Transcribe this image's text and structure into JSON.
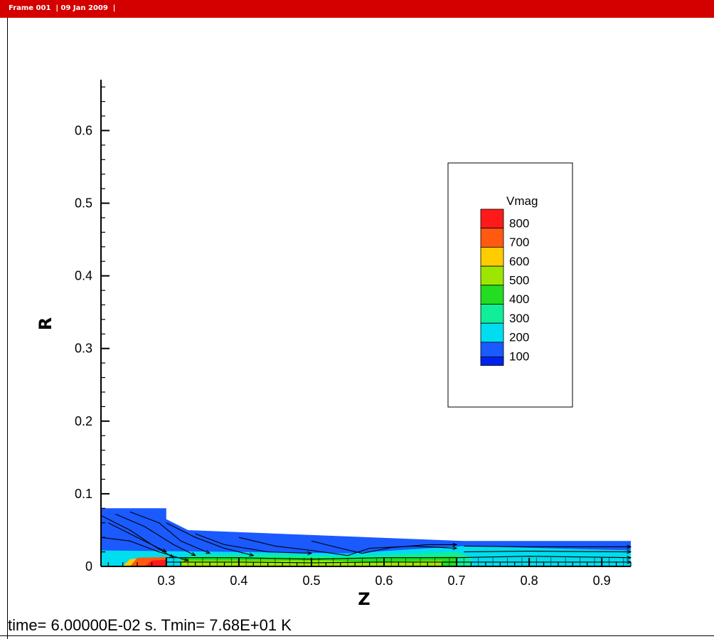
{
  "frame": {
    "header_text": "Frame 001  | 09 Jan 2009  |",
    "header_color": "#d40000"
  },
  "footer": {
    "text": "time= 6.00000E-02 s. Tmin= 7.68E+01 K"
  },
  "chart_data": {
    "type": "heatmap",
    "title": "",
    "xlabel": "Z",
    "ylabel": "R",
    "xlim": [
      0.21,
      0.94
    ],
    "ylim": [
      0,
      0.67
    ],
    "xticks": [
      0.3,
      0.4,
      0.5,
      0.6,
      0.7,
      0.8,
      0.9
    ],
    "xtick_labels": [
      "0.3",
      "0.4",
      "0.5",
      "0.6",
      "0.7",
      "0.8",
      "0.9"
    ],
    "yticks": [
      0,
      0.1,
      0.2,
      0.3,
      0.4,
      0.5,
      0.6
    ],
    "ytick_labels": [
      "0",
      "0.1",
      "0.2",
      "0.3",
      "0.4",
      "0.5",
      "0.6"
    ],
    "legend": {
      "title": "Vmag",
      "placement": "right",
      "levels": [
        {
          "label": "800",
          "color": "#ff1a1a"
        },
        {
          "label": "700",
          "color": "#ff5a10"
        },
        {
          "label": "600",
          "color": "#ffcc00"
        },
        {
          "label": "500",
          "color": "#9de600"
        },
        {
          "label": "400",
          "color": "#22dd22"
        },
        {
          "label": "300",
          "color": "#10ee99"
        },
        {
          "label": "200",
          "color": "#00ddee"
        },
        {
          "label": "100",
          "color": "#1a5aff"
        }
      ],
      "bottom_color": "#0022ee"
    },
    "domain_outline": [
      [
        0.21,
        0
      ],
      [
        0.21,
        0.08
      ],
      [
        0.3,
        0.08
      ],
      [
        0.3,
        0.065
      ],
      [
        0.33,
        0.05
      ],
      [
        0.71,
        0.035
      ],
      [
        0.94,
        0.035
      ],
      [
        0.94,
        0
      ],
      [
        0.21,
        0
      ]
    ],
    "regions": [
      {
        "value": 100,
        "polygon": [
          [
            0.21,
            0
          ],
          [
            0.21,
            0.08
          ],
          [
            0.3,
            0.08
          ],
          [
            0.3,
            0.065
          ],
          [
            0.33,
            0.05
          ],
          [
            0.71,
            0.035
          ],
          [
            0.94,
            0.035
          ],
          [
            0.94,
            0
          ]
        ]
      },
      {
        "value": 200,
        "polygon": [
          [
            0.21,
            0
          ],
          [
            0.21,
            0.022
          ],
          [
            0.4,
            0.02
          ],
          [
            0.55,
            0.018
          ],
          [
            0.71,
            0.028
          ],
          [
            0.94,
            0.022
          ],
          [
            0.94,
            0
          ]
        ]
      },
      {
        "value": 300,
        "polygon": [
          [
            0.33,
            0
          ],
          [
            0.33,
            0.016
          ],
          [
            0.45,
            0.016
          ],
          [
            0.55,
            0.014
          ],
          [
            0.7,
            0.02
          ],
          [
            0.72,
            0.012
          ],
          [
            0.72,
            0
          ]
        ]
      },
      {
        "value": 400,
        "polygon": [
          [
            0.32,
            0
          ],
          [
            0.32,
            0.012
          ],
          [
            0.5,
            0.012
          ],
          [
            0.56,
            0.01
          ],
          [
            0.7,
            0.014
          ],
          [
            0.7,
            0
          ]
        ]
      },
      {
        "value": 500,
        "polygon": [
          [
            0.32,
            0
          ],
          [
            0.32,
            0.008
          ],
          [
            0.52,
            0.008
          ],
          [
            0.58,
            0.006
          ],
          [
            0.68,
            0.008
          ],
          [
            0.68,
            0
          ]
        ]
      },
      {
        "value": 600,
        "polygon": [
          [
            0.24,
            0
          ],
          [
            0.25,
            0.01
          ],
          [
            0.3,
            0.012
          ],
          [
            0.3,
            0
          ]
        ]
      },
      {
        "value": 700,
        "polygon": [
          [
            0.25,
            0
          ],
          [
            0.26,
            0.012
          ],
          [
            0.3,
            0.013
          ],
          [
            0.3,
            0
          ]
        ]
      },
      {
        "value": 800,
        "polygon": [
          [
            0.27,
            0
          ],
          [
            0.28,
            0.008
          ],
          [
            0.3,
            0.009
          ],
          [
            0.3,
            0
          ]
        ]
      }
    ],
    "streamlines": [
      [
        [
          0.21,
          0.07
        ],
        [
          0.25,
          0.05
        ],
        [
          0.28,
          0.03
        ],
        [
          0.31,
          0.012
        ]
      ],
      [
        [
          0.22,
          0.06
        ],
        [
          0.26,
          0.04
        ],
        [
          0.3,
          0.02
        ]
      ],
      [
        [
          0.23,
          0.072
        ],
        [
          0.27,
          0.055
        ],
        [
          0.31,
          0.03
        ],
        [
          0.34,
          0.015
        ]
      ],
      [
        [
          0.25,
          0.075
        ],
        [
          0.29,
          0.06
        ],
        [
          0.32,
          0.035
        ],
        [
          0.36,
          0.018
        ]
      ],
      [
        [
          0.21,
          0.04
        ],
        [
          0.25,
          0.035
        ],
        [
          0.29,
          0.02
        ],
        [
          0.33,
          0.008
        ]
      ],
      [
        [
          0.3,
          0.06
        ],
        [
          0.34,
          0.04
        ],
        [
          0.38,
          0.025
        ],
        [
          0.42,
          0.015
        ]
      ],
      [
        [
          0.34,
          0.045
        ],
        [
          0.38,
          0.03
        ],
        [
          0.44,
          0.02
        ],
        [
          0.5,
          0.018
        ]
      ],
      [
        [
          0.4,
          0.04
        ],
        [
          0.45,
          0.028
        ],
        [
          0.5,
          0.022
        ],
        [
          0.55,
          0.015
        ],
        [
          0.58,
          0.025
        ],
        [
          0.64,
          0.028
        ],
        [
          0.7,
          0.025
        ]
      ],
      [
        [
          0.5,
          0.035
        ],
        [
          0.54,
          0.025
        ],
        [
          0.57,
          0.018
        ],
        [
          0.61,
          0.026
        ],
        [
          0.66,
          0.03
        ],
        [
          0.7,
          0.03
        ]
      ],
      [
        [
          0.3,
          0.012
        ],
        [
          0.4,
          0.012
        ],
        [
          0.5,
          0.01
        ],
        [
          0.6,
          0.012
        ],
        [
          0.7,
          0.012
        ],
        [
          0.8,
          0.014
        ],
        [
          0.94,
          0.012
        ]
      ],
      [
        [
          0.3,
          0.006
        ],
        [
          0.4,
          0.006
        ],
        [
          0.5,
          0.005
        ],
        [
          0.6,
          0.006
        ],
        [
          0.7,
          0.006
        ],
        [
          0.8,
          0.006
        ],
        [
          0.94,
          0.006
        ]
      ],
      [
        [
          0.71,
          0.028
        ],
        [
          0.8,
          0.027
        ],
        [
          0.94,
          0.027
        ]
      ],
      [
        [
          0.71,
          0.02
        ],
        [
          0.8,
          0.021
        ],
        [
          0.94,
          0.02
        ]
      ]
    ],
    "grid_lines": false
  }
}
